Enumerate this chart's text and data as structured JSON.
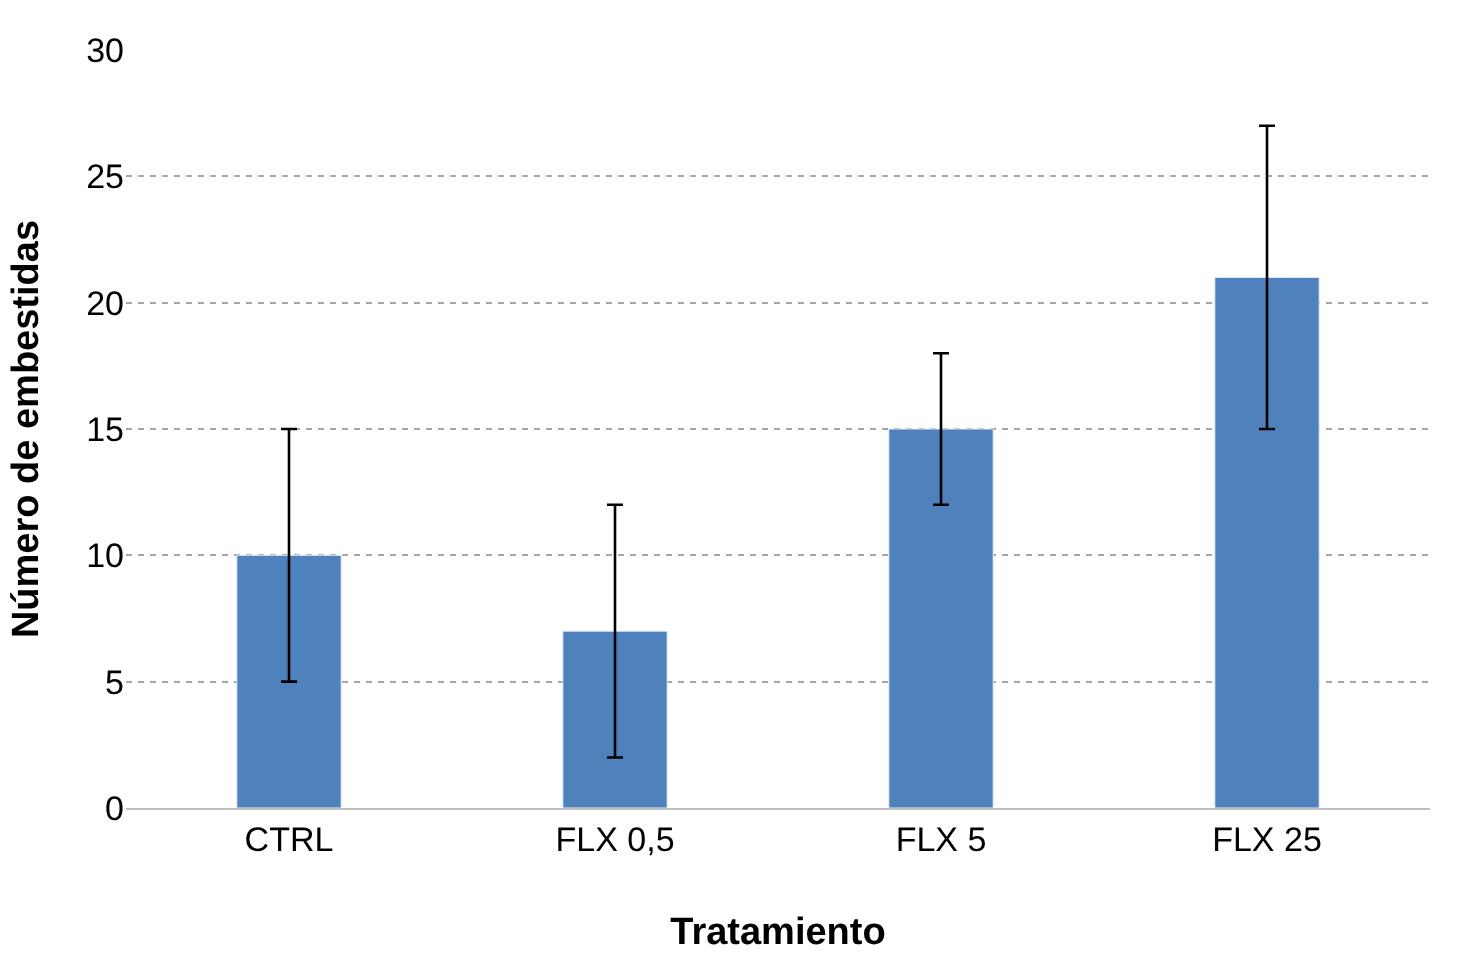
{
  "chart_data": {
    "type": "bar",
    "xlabel": "Tratamiento",
    "ylabel": "Número de embestidas",
    "categories": [
      "CTRL",
      "FLX 0,5",
      "FLX 5",
      "FLX 25"
    ],
    "values": [
      10,
      7,
      15,
      21
    ],
    "errors": [
      5,
      5,
      3,
      6
    ],
    "color": "#4f81bd",
    "ylim": [
      0,
      30
    ],
    "yticks": [
      0,
      5,
      10,
      15,
      20,
      25,
      30
    ],
    "grid": "y",
    "legend": false
  }
}
